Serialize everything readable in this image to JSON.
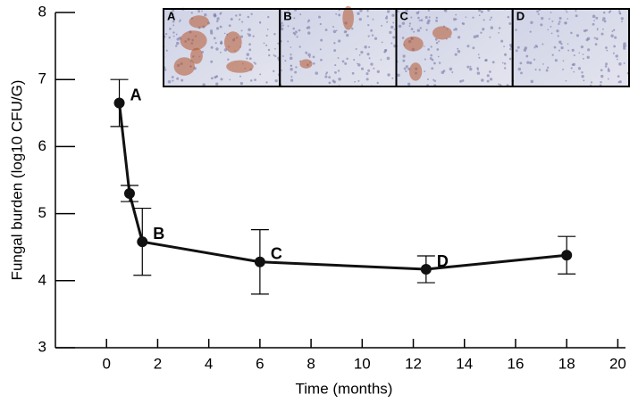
{
  "chart_data": {
    "type": "line",
    "xlabel": "Time (months)",
    "ylabel": "Fungal burden (log10 CFU/G)",
    "x": [
      0.5,
      0.9,
      1.4,
      6,
      12.5,
      18
    ],
    "series": [
      {
        "color": "#111111",
        "values": [
          6.65,
          5.3,
          4.58,
          4.28,
          4.17,
          4.38
        ],
        "errors": [
          0.35,
          0.12,
          0.5,
          0.48,
          0.2,
          0.28
        ]
      }
    ],
    "point_labels": [
      "A",
      null,
      "B",
      "C",
      "D",
      null
    ],
    "inset_panels": [
      "A",
      "B",
      "C",
      "D"
    ],
    "xlim": [
      -2,
      20.3
    ],
    "xticks": [
      0,
      2,
      4,
      6,
      8,
      10,
      12,
      14,
      16,
      18,
      20
    ],
    "ylim": [
      3,
      8
    ],
    "yticks": [
      3,
      4,
      5,
      6,
      7,
      8
    ]
  }
}
